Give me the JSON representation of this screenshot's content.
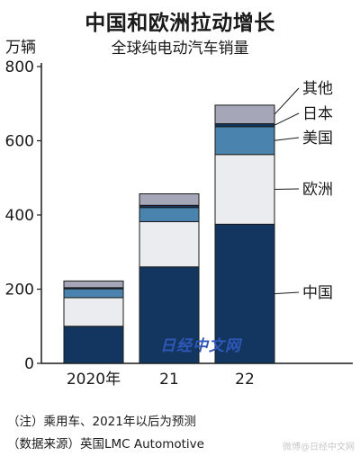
{
  "header": {
    "title": "中国和欧洲拉动增长",
    "subtitle": "全球纯电动汽车销量",
    "unit": "万辆"
  },
  "watermark": "日经中文网",
  "notes": {
    "note1": "（注）乘用车、2021年以后为预测",
    "note2": "（数据来源）英国LMC Automotive"
  },
  "social_watermark": "微博@日经中文网",
  "colors": {
    "china": "#12365f",
    "europe": "#ebecf0",
    "usa": "#4a83ad",
    "japan": "#12365f",
    "other": "#a6a6b9",
    "axis": "#1a1a1a"
  },
  "chart_data": {
    "type": "bar",
    "stacked": true,
    "title": "全球纯电动汽车销量",
    "ylabel": "万辆",
    "xlabel": "",
    "categories": [
      "2020年",
      "21",
      "22"
    ],
    "ylim": [
      0,
      800
    ],
    "yticks": [
      0,
      200,
      400,
      600,
      800
    ],
    "grid": false,
    "legend": "right",
    "series": [
      {
        "name": "中国",
        "values": [
          100,
          260,
          375
        ]
      },
      {
        "name": "欧洲",
        "values": [
          77,
          122,
          188
        ]
      },
      {
        "name": "美国",
        "values": [
          24,
          38,
          75
        ]
      },
      {
        "name": "日本",
        "values": [
          3,
          6,
          8
        ]
      },
      {
        "name": "其他",
        "values": [
          18,
          31,
          50
        ]
      }
    ]
  }
}
